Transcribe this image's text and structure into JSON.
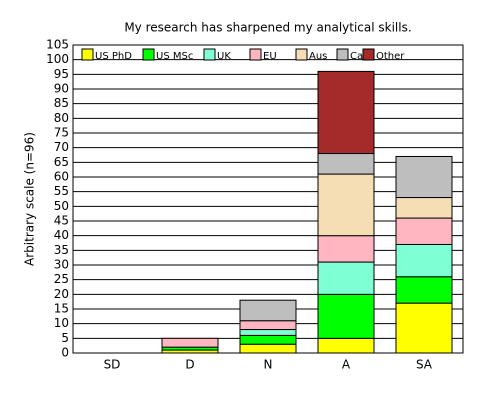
{
  "chart_data": {
    "type": "stacked-bar",
    "title": "My research has sharpened my analytical skills.",
    "y_label": "Arbitrary scale (n=96)",
    "categories": [
      "SD",
      "D",
      "N",
      "A",
      "SA"
    ],
    "series": [
      {
        "name": "US PhD",
        "color": "#ffff00",
        "values": [
          0,
          1,
          3,
          5,
          17
        ]
      },
      {
        "name": "US MSc",
        "color": "#00ff00",
        "values": [
          0,
          1,
          3,
          15,
          9
        ]
      },
      {
        "name": "UK",
        "color": "#7fffd4",
        "values": [
          0,
          0,
          2,
          11,
          11
        ]
      },
      {
        "name": "EU",
        "color": "#ffb6c1",
        "values": [
          0,
          3,
          3,
          9,
          9
        ]
      },
      {
        "name": "Aus",
        "color": "#f5deb3",
        "values": [
          0,
          0,
          0,
          21,
          7
        ]
      },
      {
        "name": "Ca",
        "color": "#bebebe",
        "values": [
          0,
          0,
          7,
          7,
          14
        ]
      },
      {
        "name": "Other",
        "color": "#a52a2a",
        "values": [
          0,
          0,
          0,
          28,
          0
        ]
      }
    ],
    "ylim": [
      0,
      105
    ],
    "yticks": [
      0,
      5,
      10,
      15,
      20,
      25,
      30,
      35,
      40,
      45,
      50,
      55,
      60,
      65,
      70,
      75,
      80,
      85,
      90,
      95,
      100,
      105
    ],
    "grid": true
  }
}
